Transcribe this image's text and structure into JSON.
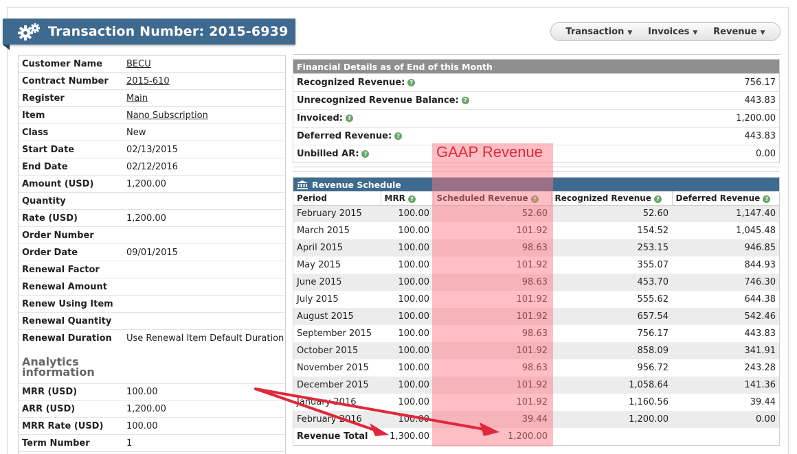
{
  "header": {
    "title": "Transaction Number: 2015-6939"
  },
  "nav": {
    "items": [
      {
        "label": "Transaction"
      },
      {
        "label": "Invoices"
      },
      {
        "label": "Revenue"
      }
    ]
  },
  "details": {
    "fields": [
      {
        "label": "Customer Name",
        "value": "BECU"
      },
      {
        "label": "Contract Number",
        "value": "2015-610"
      },
      {
        "label": "Register",
        "value": "Main"
      },
      {
        "label": "Item",
        "value": "Nano Subscription"
      },
      {
        "label": "Class",
        "value": "New"
      },
      {
        "label": "Start Date",
        "value": "02/13/2015"
      },
      {
        "label": "End Date",
        "value": "02/12/2016"
      },
      {
        "label": "Amount (USD)",
        "value": "1,200.00"
      },
      {
        "label": "Quantity",
        "value": ""
      },
      {
        "label": "Rate (USD)",
        "value": "1,200.00"
      },
      {
        "label": "Order Number",
        "value": ""
      },
      {
        "label": "Order Date",
        "value": "09/01/2015"
      },
      {
        "label": "Renewal Factor",
        "value": ""
      },
      {
        "label": "Renewal Amount",
        "value": ""
      },
      {
        "label": "Renew Using Item",
        "value": ""
      },
      {
        "label": "Renewal Quantity",
        "value": ""
      },
      {
        "label": "Renewal Duration",
        "value": "Use Renewal Item Default Duration"
      }
    ]
  },
  "analytics": {
    "title_line1": "Analytics",
    "title_line2": "information",
    "fields": [
      {
        "label": "MRR (USD)",
        "value": "100.00"
      },
      {
        "label": "ARR (USD)",
        "value": "1,200.00"
      },
      {
        "label": "MRR Rate (USD)",
        "value": "100.00"
      },
      {
        "label": "Term Number",
        "value": "1"
      }
    ]
  },
  "financial": {
    "title": "Financial Details as of End of this Month",
    "rows": [
      {
        "label": "Recognized Revenue:",
        "value": "756.17"
      },
      {
        "label": "Unrecognized Revenue Balance:",
        "value": "443.83"
      },
      {
        "label": "Invoiced:",
        "value": "1,200.00"
      },
      {
        "label": "Deferred Revenue:",
        "value": "443.83"
      },
      {
        "label": "Unbilled AR:",
        "value": "0.00"
      }
    ]
  },
  "schedule": {
    "title": "Revenue Schedule",
    "columns": [
      "Period",
      "MRR",
      "Scheduled Revenue",
      "Recognized Revenue",
      "Deferred Revenue"
    ],
    "rows": [
      [
        "February 2015",
        "100.00",
        "52.60",
        "52.60",
        "1,147.40"
      ],
      [
        "March 2015",
        "100.00",
        "101.92",
        "154.52",
        "1,045.48"
      ],
      [
        "April 2015",
        "100.00",
        "98.63",
        "253.15",
        "946.85"
      ],
      [
        "May 2015",
        "100.00",
        "101.92",
        "355.07",
        "844.93"
      ],
      [
        "June 2015",
        "100.00",
        "98.63",
        "453.70",
        "746.30"
      ],
      [
        "July 2015",
        "100.00",
        "101.92",
        "555.62",
        "644.38"
      ],
      [
        "August 2015",
        "100.00",
        "101.92",
        "657.54",
        "542.46"
      ],
      [
        "September 2015",
        "100.00",
        "98.63",
        "756.17",
        "443.83"
      ],
      [
        "October 2015",
        "100.00",
        "101.92",
        "858.09",
        "341.91"
      ],
      [
        "November 2015",
        "100.00",
        "98.63",
        "956.72",
        "243.28"
      ],
      [
        "December 2015",
        "100.00",
        "101.92",
        "1,058.64",
        "141.36"
      ],
      [
        "January 2016",
        "100.00",
        "101.92",
        "1,160.56",
        "39.44"
      ],
      [
        "February 2016",
        "100.00",
        "39.44",
        "1,200.00",
        "0.00"
      ]
    ],
    "total": {
      "label": "Revenue Total",
      "mrr": "1,300.00",
      "scheduled": "1,200.00"
    }
  },
  "annotation": {
    "label": "GAAP Revenue",
    "color": "#e0283a"
  }
}
